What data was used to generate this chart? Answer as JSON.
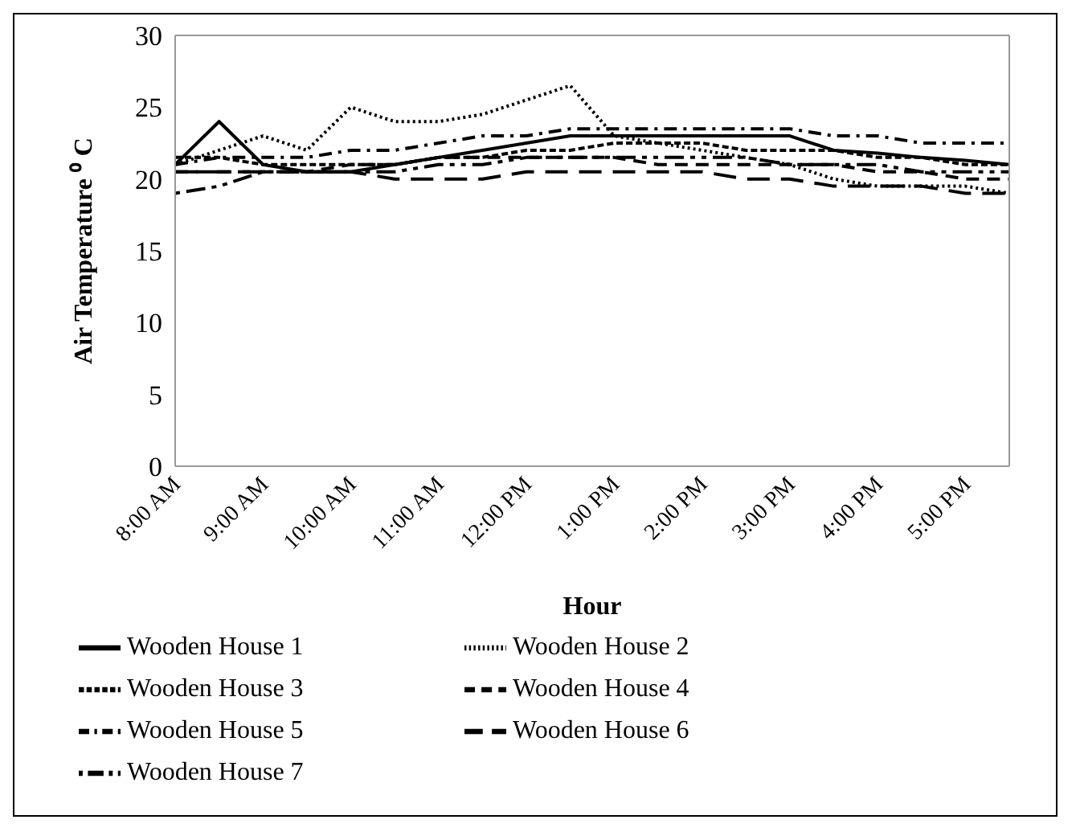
{
  "chart_data": {
    "type": "line",
    "xlabel": "Hour",
    "ylabel": "Air Temperature ⁰ C",
    "categories": [
      "8:00 AM",
      null,
      "9:00 AM",
      null,
      "10:00 AM",
      null,
      "11:00 AM",
      null,
      "12:00 PM",
      null,
      "1:00 PM",
      null,
      "2:00 PM",
      null,
      "3:00 PM",
      null,
      "4:00 PM",
      null,
      "5:00 PM",
      null
    ],
    "series": [
      {
        "name": "Wooden House 1",
        "color": "#000000",
        "line_style": "solid",
        "values": [
          21,
          24,
          21,
          20.5,
          20.5,
          21,
          21.5,
          22,
          22.5,
          23,
          23,
          23,
          23,
          23,
          23,
          22,
          21.8,
          21.5,
          21.3,
          21
        ]
      },
      {
        "name": "Wooden House 2",
        "color": "#000000",
        "line_style": "dotted",
        "values": [
          21,
          22,
          23,
          22,
          25,
          24,
          24,
          24.5,
          25.5,
          26.5,
          23,
          22.5,
          22,
          21.5,
          21,
          20,
          19.5,
          19.5,
          19.5,
          19
        ]
      },
      {
        "name": "Wooden House 3",
        "color": "#000000",
        "line_style": "dashed",
        "values": [
          21.5,
          21.5,
          21,
          21,
          21,
          21,
          21.5,
          21.5,
          22,
          22,
          22.5,
          22.5,
          22.5,
          22,
          22,
          22,
          21.5,
          21.5,
          21,
          21
        ]
      },
      {
        "name": "Wooden House 4",
        "color": "#000000",
        "line_style": "dashed",
        "values": [
          20.5,
          20.5,
          20.5,
          20.5,
          21,
          21,
          21.5,
          21.5,
          21.5,
          21.5,
          21.5,
          21,
          21,
          21,
          21,
          21,
          20.5,
          20.5,
          20,
          20
        ]
      },
      {
        "name": "Wooden House 5",
        "color": "#000000",
        "line_style": "dashed",
        "values": [
          21,
          21.5,
          21.5,
          21.5,
          22,
          22,
          22.5,
          23,
          23,
          23.5,
          23.5,
          23.5,
          23.5,
          23.5,
          23.5,
          23,
          23,
          22.5,
          22.5,
          22.5
        ]
      },
      {
        "name": "Wooden House 6",
        "color": "#000000",
        "line_style": "dashed",
        "values": [
          20.5,
          20.5,
          20.5,
          20.5,
          20.5,
          20,
          20,
          20,
          20.5,
          20.5,
          20.5,
          20.5,
          20.5,
          20,
          20,
          19.5,
          19.5,
          19.5,
          19,
          19
        ]
      },
      {
        "name": "Wooden House 7",
        "color": "#000000",
        "line_style": "dashed",
        "values": [
          19,
          19.5,
          20.5,
          20.5,
          20.5,
          20.5,
          21,
          21,
          21.5,
          21.5,
          21.5,
          21.5,
          21.5,
          21.5,
          21,
          21,
          21,
          20.5,
          20.5,
          20.5
        ]
      }
    ],
    "ylim": [
      0,
      30
    ],
    "yticks": [
      0,
      5,
      10,
      15,
      20,
      25,
      30
    ],
    "grid": false,
    "legend": "bottom",
    "marker": "none"
  }
}
